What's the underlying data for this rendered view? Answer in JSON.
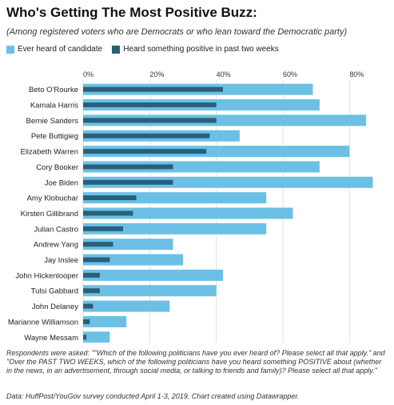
{
  "title": "Who's Getting The Most Positive Buzz:",
  "subtitle": "(Among registered voters who are Democrats or who lean toward the Democratic party)",
  "legend": [
    {
      "label": "Ever heard of candidate",
      "color": "#6cc0e5"
    },
    {
      "label": "Heard something positive in past two weeks",
      "color": "#2a5f7a"
    }
  ],
  "note": "Respondents were asked: \"\"Which of the following politicians have you ever heard of? Please select all that apply.\" and \"Over the PAST TWO WEEKS, which of the following politicians have you heard something POSITIVE about (whether in the news, in an advertisement, through social media, or talking to friends and family)? Please select all that apply.\"",
  "source": "Data: HuffPost/YouGov survey conducted April 1-3, 2019. Chart created using Datawrapper.",
  "chart_data": {
    "type": "bar",
    "orientation": "horizontal",
    "categories": [
      "Beto O'Rourke",
      "Kamala Harris",
      "Bernie Sanders",
      "Pete Buttigieg",
      "Elizabeth Warren",
      "Cory Booker",
      "Joe Biden",
      "Amy Klobuchar",
      "Kirsten Gillibrand",
      "Julian Castro",
      "Andrew Yang",
      "Jay Inslee",
      "John Hickenlooper",
      "Tulsi Gabbard",
      "John Delaney",
      "Marianne Williamson",
      "Wayne Messam"
    ],
    "series": [
      {
        "name": "Ever heard of candidate",
        "color": "#6cc0e5",
        "values": [
          69,
          71,
          85,
          47,
          80,
          71,
          87,
          55,
          63,
          55,
          27,
          30,
          42,
          40,
          26,
          13,
          8
        ]
      },
      {
        "name": "Heard something positive in past two weeks",
        "color": "#2a5f7a",
        "values": [
          42,
          40,
          40,
          38,
          37,
          27,
          27,
          16,
          15,
          12,
          9,
          8,
          5,
          5,
          3,
          2,
          1
        ]
      }
    ],
    "xlim": [
      0,
      90
    ],
    "xticks": [
      0,
      20,
      40,
      60,
      80
    ],
    "xtick_labels": [
      "0%",
      "20%",
      "40%",
      "60%",
      "80%"
    ],
    "grid": true
  }
}
